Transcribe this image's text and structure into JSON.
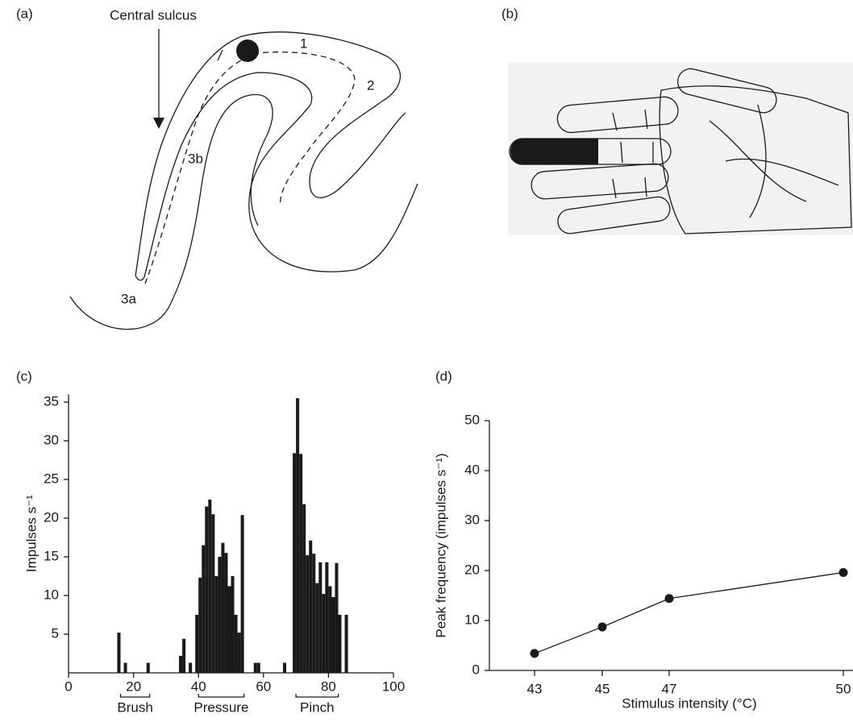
{
  "diagrams": {
    "a": {
      "panel_label": "(a)",
      "annotation": "Central sulcus",
      "areas": [
        "1",
        "2",
        "3b",
        "3a"
      ]
    },
    "b": {
      "panel_label": "(b)"
    }
  },
  "chart_data": [
    {
      "type": "histogram",
      "panel_label": "(c)",
      "y_label": "Impulses s⁻¹",
      "bins": [
        15,
        16,
        17,
        18,
        19,
        20,
        21,
        22,
        23,
        24,
        25,
        26,
        27,
        28,
        29,
        30,
        31,
        32,
        33,
        34,
        35,
        36,
        37,
        38,
        39,
        40,
        41,
        42,
        43,
        44,
        45,
        46,
        47,
        48,
        49,
        50,
        51,
        52,
        53,
        54,
        55,
        56,
        57,
        58,
        59,
        60,
        61,
        62,
        63,
        64,
        65,
        66,
        67,
        68,
        69,
        70,
        71,
        72,
        73,
        74,
        75,
        76,
        77,
        78,
        79,
        80,
        81,
        82,
        83,
        84,
        85,
        86
      ],
      "values": [
        5.2,
        0,
        1.3,
        0,
        0,
        0,
        0,
        0,
        0,
        1.3,
        0,
        0,
        0,
        0,
        0,
        0,
        0,
        0,
        0,
        2.2,
        4.4,
        0,
        1.3,
        0,
        7.5,
        12.3,
        16.5,
        21.5,
        22.4,
        20.5,
        12.5,
        15,
        16.8,
        15.5,
        11.2,
        12.5,
        7.5,
        5.2,
        20.4,
        0,
        0,
        0,
        1.3,
        1.3,
        0,
        0,
        0,
        0,
        0,
        0,
        0,
        1.3,
        0,
        0,
        28.4,
        35.5,
        28.3,
        21.8,
        15.2,
        17.1,
        15.4,
        11.6,
        14.3,
        10.2,
        14.3,
        11.2,
        9.8,
        14.2,
        7.5,
        0,
        7.5
      ],
      "color": "#1a1a1a",
      "xlim": [
        0,
        100
      ],
      "xticks": [
        0,
        20,
        40,
        60,
        80,
        100
      ],
      "ylim": [
        0,
        36
      ],
      "yticks": [
        5,
        10,
        15,
        20,
        25,
        30,
        35
      ],
      "annotations": [
        {
          "text": "Brush",
          "start": 16,
          "end": 25
        },
        {
          "text": "Pressure",
          "start": 40,
          "end": 54
        },
        {
          "text": "Pinch",
          "start": 70,
          "end": 83
        }
      ]
    },
    {
      "type": "line",
      "panel_label": "(d)",
      "x_label": "Stimulus intensity (°C)",
      "y_label": "Peak frequency (impulses s⁻¹)",
      "categories": [
        "43",
        "45",
        "47",
        "50"
      ],
      "values": [
        3.4,
        8.7,
        14.4,
        19.6
      ],
      "color": "#1a1a1a",
      "ylim": [
        0,
        50
      ],
      "yticks": [
        0,
        10,
        20,
        30,
        40,
        50
      ]
    }
  ]
}
